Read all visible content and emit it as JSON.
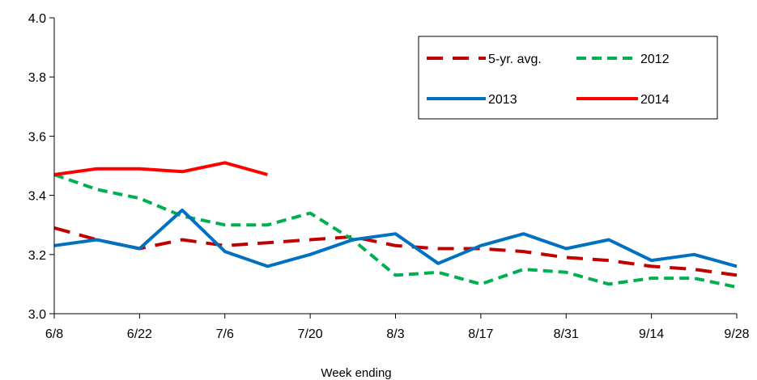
{
  "chart_data": {
    "type": "line",
    "title": "",
    "xlabel": "Week ending",
    "ylabel": "",
    "ylim": [
      3.0,
      4.0
    ],
    "yticks": [
      "3.0",
      "3.2",
      "3.4",
      "3.6",
      "3.8",
      "4.0"
    ],
    "x": [
      "6/8",
      "6/15",
      "6/22",
      "6/29",
      "7/6",
      "7/13",
      "7/20",
      "7/27",
      "8/3",
      "8/10",
      "8/17",
      "8/24",
      "8/31",
      "9/7",
      "9/14",
      "9/21",
      "9/28"
    ],
    "xtick_labels": [
      "6/8",
      "6/22",
      "7/6",
      "7/20",
      "8/3",
      "8/17",
      "8/31",
      "9/14",
      "9/28"
    ],
    "grid": false,
    "legend_position": "top-right",
    "series": [
      {
        "name": "5-yr. avg.",
        "color": "#c00000",
        "style": "dashed",
        "values": [
          3.29,
          3.25,
          3.22,
          3.25,
          3.23,
          3.24,
          3.25,
          3.26,
          3.23,
          3.22,
          3.22,
          3.21,
          3.19,
          3.18,
          3.16,
          3.15,
          3.13
        ]
      },
      {
        "name": "2012",
        "color": "#00b050",
        "style": "dotted",
        "values": [
          3.47,
          3.42,
          3.39,
          3.33,
          3.3,
          3.3,
          3.34,
          3.25,
          3.13,
          3.14,
          3.1,
          3.15,
          3.14,
          3.1,
          3.12,
          3.12,
          3.09
        ]
      },
      {
        "name": "2013",
        "color": "#0070c0",
        "style": "solid",
        "values": [
          3.23,
          3.25,
          3.22,
          3.35,
          3.21,
          3.16,
          3.2,
          3.25,
          3.27,
          3.17,
          3.23,
          3.27,
          3.22,
          3.25,
          3.18,
          3.2,
          3.16
        ]
      },
      {
        "name": "2014",
        "color": "#ff0000",
        "style": "solid",
        "values": [
          3.47,
          3.49,
          3.49,
          3.48,
          3.51,
          3.47,
          null,
          null,
          null,
          null,
          null,
          null,
          null,
          null,
          null,
          null,
          null
        ]
      }
    ]
  }
}
